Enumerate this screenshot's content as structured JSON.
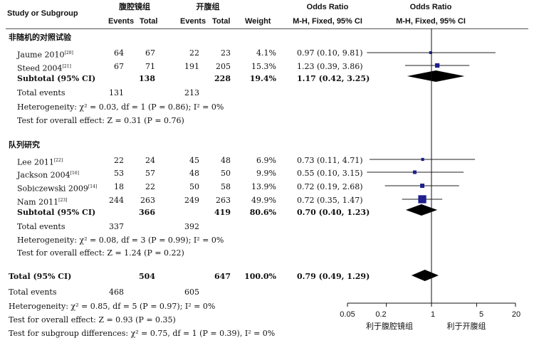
{
  "header": {
    "study_col": "Study or Subgroup",
    "group1": "腹腔镜组",
    "group2": "开腹组",
    "events": "Events",
    "total": "Total",
    "weight": "Weight",
    "or_col": "Odds Ratio",
    "or_sub": "M-H, Fixed, 95% CI",
    "plot_col": "Odds Ratio",
    "plot_sub": "M-H, Fixed, 95% CI"
  },
  "chart_data": {
    "type": "forest",
    "x_scale": "log",
    "xlim": [
      0.05,
      20
    ],
    "x_ticks": [
      "0.05",
      "0.2",
      "1",
      "5",
      "20"
    ],
    "favours_left": "利于腹腔镜组",
    "favours_right": "利于开腹组",
    "subgroups": [
      {
        "name": "非随机的对照试验",
        "studies": [
          {
            "study": "Jaume 2010",
            "ref": "[20]",
            "e1": "64",
            "n1": "67",
            "e2": "22",
            "n2": "23",
            "weight": "4.1%",
            "or_text": "0.97 (0.10, 9.81)",
            "or": 0.97,
            "lo": 0.1,
            "hi": 9.81,
            "w": 4.1
          },
          {
            "study": "Steed 2004",
            "ref": "[21]",
            "e1": "67",
            "n1": "71",
            "e2": "191",
            "n2": "205",
            "weight": "15.3%",
            "or_text": "1.23 (0.39, 3.86)",
            "or": 1.23,
            "lo": 0.39,
            "hi": 3.86,
            "w": 15.3
          }
        ],
        "subtotal": {
          "label": "Subtotal (95% CI)",
          "n1": "138",
          "n2": "228",
          "weight": "19.4%",
          "or_text": "1.17 (0.42, 3.25)",
          "or": 1.17,
          "lo": 0.42,
          "hi": 3.25
        },
        "total_events": {
          "label": "Total events",
          "e1": "131",
          "e2": "213"
        },
        "heterogeneity": "Heterogeneity: χ² = 0.03, df = 1 (P = 0.86); I² = 0%",
        "overall": "Test for overall effect: Z = 0.31 (P = 0.76)"
      },
      {
        "name": "队列研究",
        "studies": [
          {
            "study": "Lee 2011",
            "ref": "[22]",
            "e1": "22",
            "n1": "24",
            "e2": "45",
            "n2": "48",
            "weight": "6.9%",
            "or_text": "0.73 (0.11, 4.71)",
            "or": 0.73,
            "lo": 0.11,
            "hi": 4.71,
            "w": 6.9
          },
          {
            "study": "Jackson 2004",
            "ref": "[16]",
            "e1": "53",
            "n1": "57",
            "e2": "48",
            "n2": "50",
            "weight": "9.9%",
            "or_text": "0.55 (0.10, 3.15)",
            "or": 0.55,
            "lo": 0.1,
            "hi": 3.15,
            "w": 9.9
          },
          {
            "study": "Sobiczewski 2009",
            "ref": "[14]",
            "e1": "18",
            "n1": "22",
            "e2": "50",
            "n2": "58",
            "weight": "13.9%",
            "or_text": "0.72 (0.19, 2.68)",
            "or": 0.72,
            "lo": 0.19,
            "hi": 2.68,
            "w": 13.9
          },
          {
            "study": "Nam 2011",
            "ref": "[23]",
            "e1": "244",
            "n1": "263",
            "e2": "249",
            "n2": "263",
            "weight": "49.9%",
            "or_text": "0.72 (0.35, 1.47)",
            "or": 0.72,
            "lo": 0.35,
            "hi": 1.47,
            "w": 49.9
          }
        ],
        "subtotal": {
          "label": "Subtotal (95% CI)",
          "n1": "366",
          "n2": "419",
          "weight": "80.6%",
          "or_text": "0.70 (0.40, 1.23)",
          "or": 0.7,
          "lo": 0.4,
          "hi": 1.23
        },
        "total_events": {
          "label": "Total events",
          "e1": "337",
          "e2": "392"
        },
        "heterogeneity": "Heterogeneity: χ² = 0.08, df = 3 (P = 0.99); I² = 0%",
        "overall": "Test for overall effect: Z = 1.24 (P = 0.22)"
      }
    ],
    "total": {
      "label": "Total (95% CI)",
      "n1": "504",
      "n2": "647",
      "weight": "100.0%",
      "or_text": "0.79 (0.49, 1.29)",
      "or": 0.79,
      "lo": 0.49,
      "hi": 1.29
    },
    "total_events": {
      "label": "Total events",
      "e1": "468",
      "e2": "605"
    },
    "heterogeneity": "Heterogeneity: χ² = 0.85, df = 5 (P = 0.97); I² = 0%",
    "overall": "Test for overall effect: Z = 0.93 (P = 0.35)",
    "subgroup_diff": "Test for subgroup differences: χ² = 0.75, df = 1 (P = 0.39), I² = 0%",
    "colors": {
      "marker": "#1f1f8f",
      "diamond": "#000000"
    }
  }
}
